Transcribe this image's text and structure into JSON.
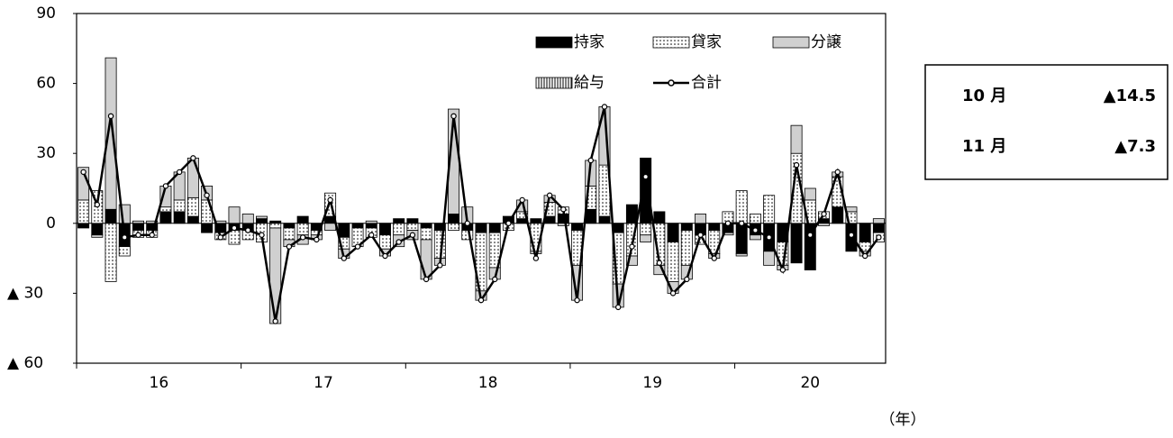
{
  "chart_data": {
    "type": "stacked-bar-line",
    "categories": [
      null,
      null,
      null,
      null,
      null,
      null,
      null,
      null,
      null,
      null,
      null,
      null,
      null,
      null,
      null,
      null,
      null,
      null,
      null,
      null,
      null,
      null,
      null,
      null,
      null,
      null,
      null,
      null,
      null,
      null,
      null,
      null,
      null,
      null,
      null,
      null,
      null,
      null,
      null,
      null,
      null,
      null,
      null,
      null,
      null,
      null,
      null,
      null,
      null,
      null,
      null,
      null,
      null,
      null,
      null,
      null,
      null,
      null,
      null
    ],
    "year_labels": [
      "16",
      "17",
      "18",
      "19",
      "20"
    ],
    "x_unit_label": "（年）",
    "ylim": [
      -60,
      90
    ],
    "yticks": [
      90,
      60,
      30,
      0,
      {
        "value": -30,
        "label": "▲ 30"
      },
      {
        "value": -60,
        "label": "▲ 60"
      }
    ],
    "series": [
      {
        "name": "持家",
        "color": "#000000",
        "values": [
          -2,
          -5,
          6,
          -10,
          -3,
          -3,
          5,
          5,
          3,
          -4,
          -4,
          -3,
          -3,
          2,
          1,
          -2,
          3,
          -3,
          3,
          -6,
          -2,
          -2,
          -5,
          2,
          2,
          -2,
          -3,
          4,
          -3,
          -4,
          -4,
          3,
          2,
          2,
          3,
          4,
          -3,
          6,
          3,
          -4,
          8,
          28,
          5,
          -8,
          -3,
          -5,
          -3,
          -4,
          -13,
          -5,
          -12,
          -8,
          -17,
          -20,
          2,
          7,
          -12,
          -8,
          -4
        ]
      },
      {
        "name": "貸家",
        "color": "#ffffff",
        "pattern": "dots",
        "values": [
          10,
          14,
          -25,
          -4,
          -3,
          -3,
          2,
          5,
          8,
          10,
          -3,
          -6,
          -4,
          -8,
          -2,
          -5,
          -5,
          -2,
          10,
          -5,
          -8,
          -4,
          -6,
          -5,
          -3,
          -5,
          -12,
          -3,
          -4,
          -25,
          -15,
          -3,
          3,
          -12,
          6,
          3,
          -15,
          10,
          22,
          -22,
          -14,
          -5,
          -18,
          -17,
          -15,
          -4,
          -10,
          5,
          14,
          4,
          12,
          -10,
          30,
          10,
          3,
          13,
          5,
          -4,
          -4
        ]
      },
      {
        "name": "分譲",
        "color": "#d0d0d0",
        "values": [
          14,
          -1,
          65,
          8,
          1,
          1,
          9,
          12,
          17,
          6,
          1,
          7,
          4,
          1,
          -41,
          -3,
          -4,
          -2,
          -3,
          -4,
          0,
          1,
          -3,
          -5,
          -4,
          -17,
          -3,
          45,
          7,
          -4,
          -5,
          0,
          5,
          -1,
          3,
          -1,
          -15,
          11,
          25,
          -10,
          -4,
          -3,
          -4,
          -5,
          -6,
          4,
          -2,
          -1,
          -1,
          -2,
          -6,
          -2,
          12,
          5,
          -1,
          2,
          2,
          -2,
          2
        ]
      },
      {
        "name": "給与",
        "color": "#ffffff",
        "pattern": "vstripes",
        "values": [
          0,
          0,
          0,
          0,
          0,
          0,
          0,
          0,
          0,
          0,
          0,
          0,
          0,
          0,
          0,
          0,
          0,
          0,
          0,
          0,
          0,
          0,
          0,
          0,
          0,
          0,
          0,
          0,
          0,
          0,
          0,
          0,
          0,
          0,
          0,
          0,
          0,
          0,
          0,
          0,
          0,
          0,
          0,
          0,
          0,
          0,
          0,
          0,
          0,
          0,
          0,
          0,
          0,
          0,
          0,
          0,
          0,
          0,
          0
        ]
      },
      {
        "name": "合計",
        "color": "#000000",
        "kind": "line",
        "values": [
          22,
          8,
          46,
          -6,
          -5,
          -5,
          16,
          22,
          28,
          12,
          -6,
          -2,
          -3,
          -5,
          -42,
          -10,
          -6,
          -7,
          10,
          -15,
          -10,
          -5,
          -14,
          -8,
          -5,
          -24,
          -18,
          46,
          0,
          -33,
          -24,
          0,
          10,
          -15,
          12,
          6,
          -33,
          27,
          50,
          -36,
          -10,
          20,
          -17,
          -30,
          -24,
          -5,
          -15,
          0,
          0,
          -3,
          -6,
          -20,
          25,
          -5,
          4,
          22,
          -5,
          -14,
          -6
        ]
      }
    ]
  },
  "summary": [
    {
      "month": "10 月",
      "value": "▲14.5"
    },
    {
      "month": "11 月",
      "value": "▲7.3"
    }
  ]
}
